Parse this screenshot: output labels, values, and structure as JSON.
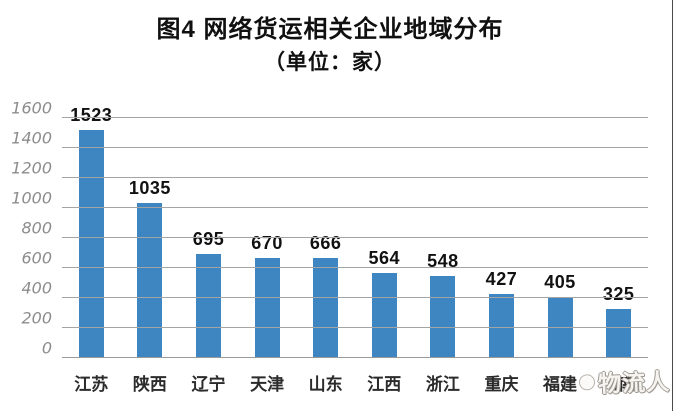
{
  "title": "图4 网络货运相关企业地域分布",
  "subtitle": "（单位：家）",
  "watermark": {
    "text": "物流人"
  },
  "colors": {
    "bar": "#3E86C1",
    "gridline": "#A4A4A4",
    "y_tick_label": "#8C8C8C",
    "x_axis_label": "#2B2B2B",
    "data_label": "#111111",
    "background": "#FFFFFF"
  },
  "chart_data": {
    "type": "bar",
    "title": "图4 网络货运相关企业地域分布",
    "subtitle": "（单位：家）",
    "categories": [
      "江苏",
      "陕西",
      "辽宁",
      "天津",
      "山东",
      "江西",
      "浙江",
      "重庆",
      "福建",
      "海南"
    ],
    "values": [
      1523,
      1035,
      695,
      670,
      666,
      564,
      548,
      427,
      405,
      325
    ],
    "xlabel": "",
    "ylabel": "",
    "ylim": [
      0,
      1600
    ],
    "yticks": [
      0,
      200,
      400,
      600,
      800,
      1000,
      1200,
      1400,
      1600
    ],
    "grid": true,
    "legend": false,
    "data_labels": true,
    "notes": {
      "last_category_partially_obscured_by_watermark": true
    }
  }
}
